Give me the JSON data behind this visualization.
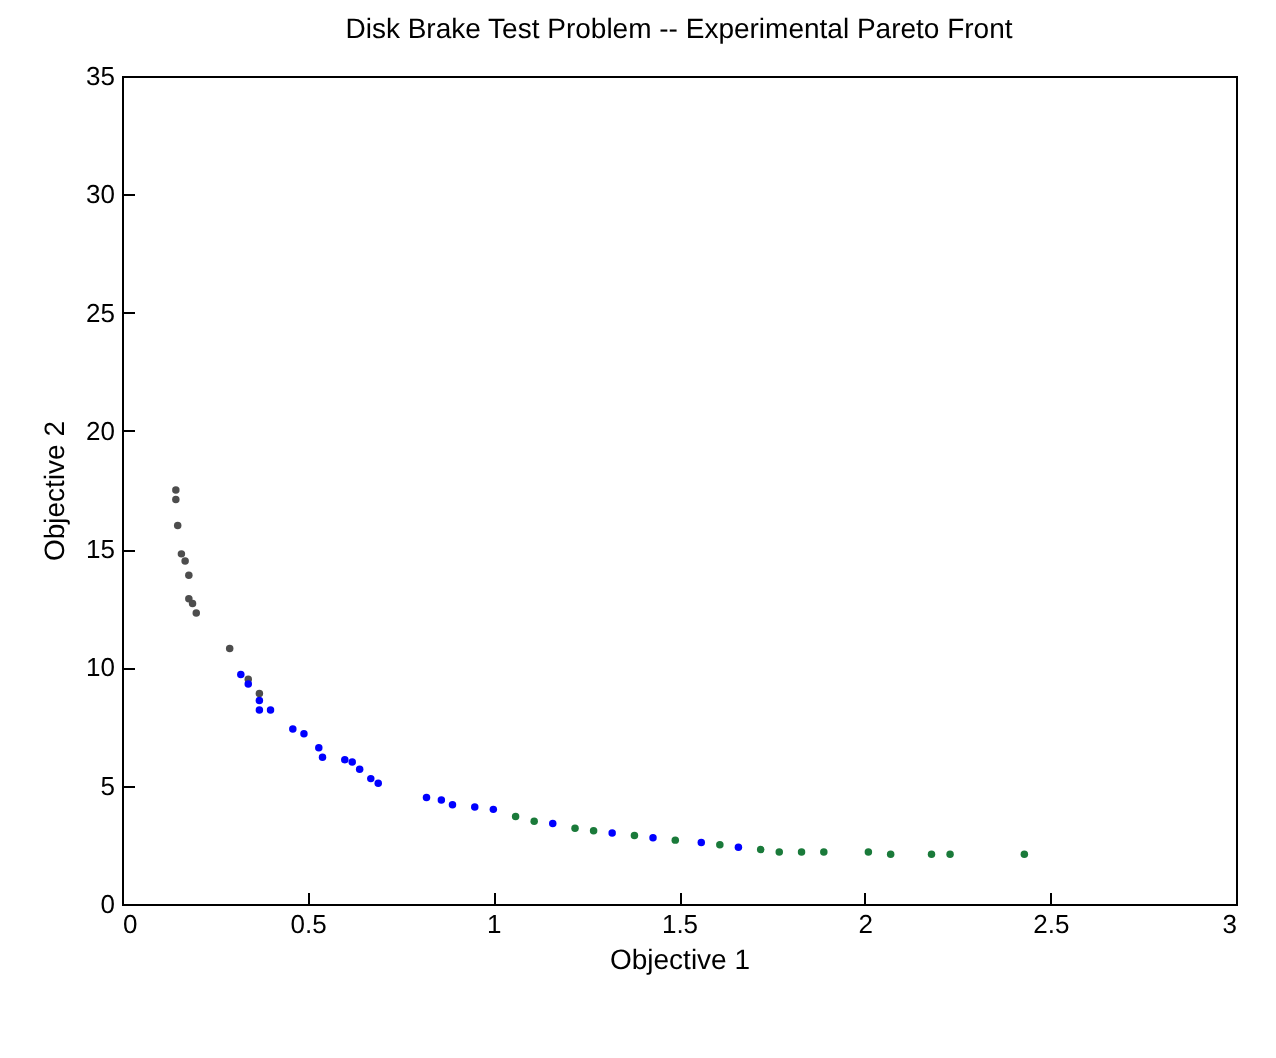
{
  "chart_data": {
    "type": "scatter",
    "title": "Disk Brake Test Problem -- Experimental Pareto Front",
    "xlabel": "Objective 1",
    "ylabel": "Objective 2",
    "xlim": [
      0,
      3
    ],
    "ylim": [
      0,
      35
    ],
    "xticks": [
      0,
      0.5,
      1,
      1.5,
      2,
      2.5,
      3
    ],
    "yticks": [
      0,
      5,
      10,
      15,
      20,
      25,
      30,
      35
    ],
    "grid": false,
    "marker": "circle",
    "series": [
      {
        "color": "#4d4d4d",
        "x": [
          0.145,
          0.145,
          0.15,
          0.16,
          0.17,
          0.18,
          0.18,
          0.19,
          0.2,
          0.29,
          0.34,
          0.37
        ],
        "values": [
          17.5,
          17.1,
          16.0,
          14.8,
          14.5,
          13.9,
          12.9,
          12.7,
          12.3,
          10.8,
          9.5,
          8.9
        ]
      },
      {
        "color": "#0000ff",
        "x": [
          0.32,
          0.34,
          0.37,
          0.37,
          0.4,
          0.46,
          0.49,
          0.53,
          0.54,
          0.6,
          0.62,
          0.64,
          0.67,
          0.69,
          0.82,
          0.86,
          0.89,
          0.95,
          1.0,
          1.16,
          1.32,
          1.43,
          1.56,
          1.66
        ],
        "values": [
          9.7,
          9.3,
          8.6,
          8.2,
          8.2,
          7.4,
          7.2,
          6.6,
          6.2,
          6.1,
          6.0,
          5.7,
          5.3,
          5.1,
          4.5,
          4.4,
          4.2,
          4.1,
          4.0,
          3.4,
          3.0,
          2.8,
          2.6,
          2.4
        ]
      },
      {
        "color": "#1a7a3a",
        "x": [
          1.06,
          1.11,
          1.22,
          1.27,
          1.38,
          1.49,
          1.61,
          1.72,
          1.77,
          1.83,
          1.89,
          2.01,
          2.07,
          2.18,
          2.23,
          2.43
        ],
        "values": [
          3.7,
          3.5,
          3.2,
          3.1,
          2.9,
          2.7,
          2.5,
          2.3,
          2.2,
          2.2,
          2.2,
          2.2,
          2.1,
          2.1,
          2.1,
          2.1
        ]
      }
    ]
  }
}
